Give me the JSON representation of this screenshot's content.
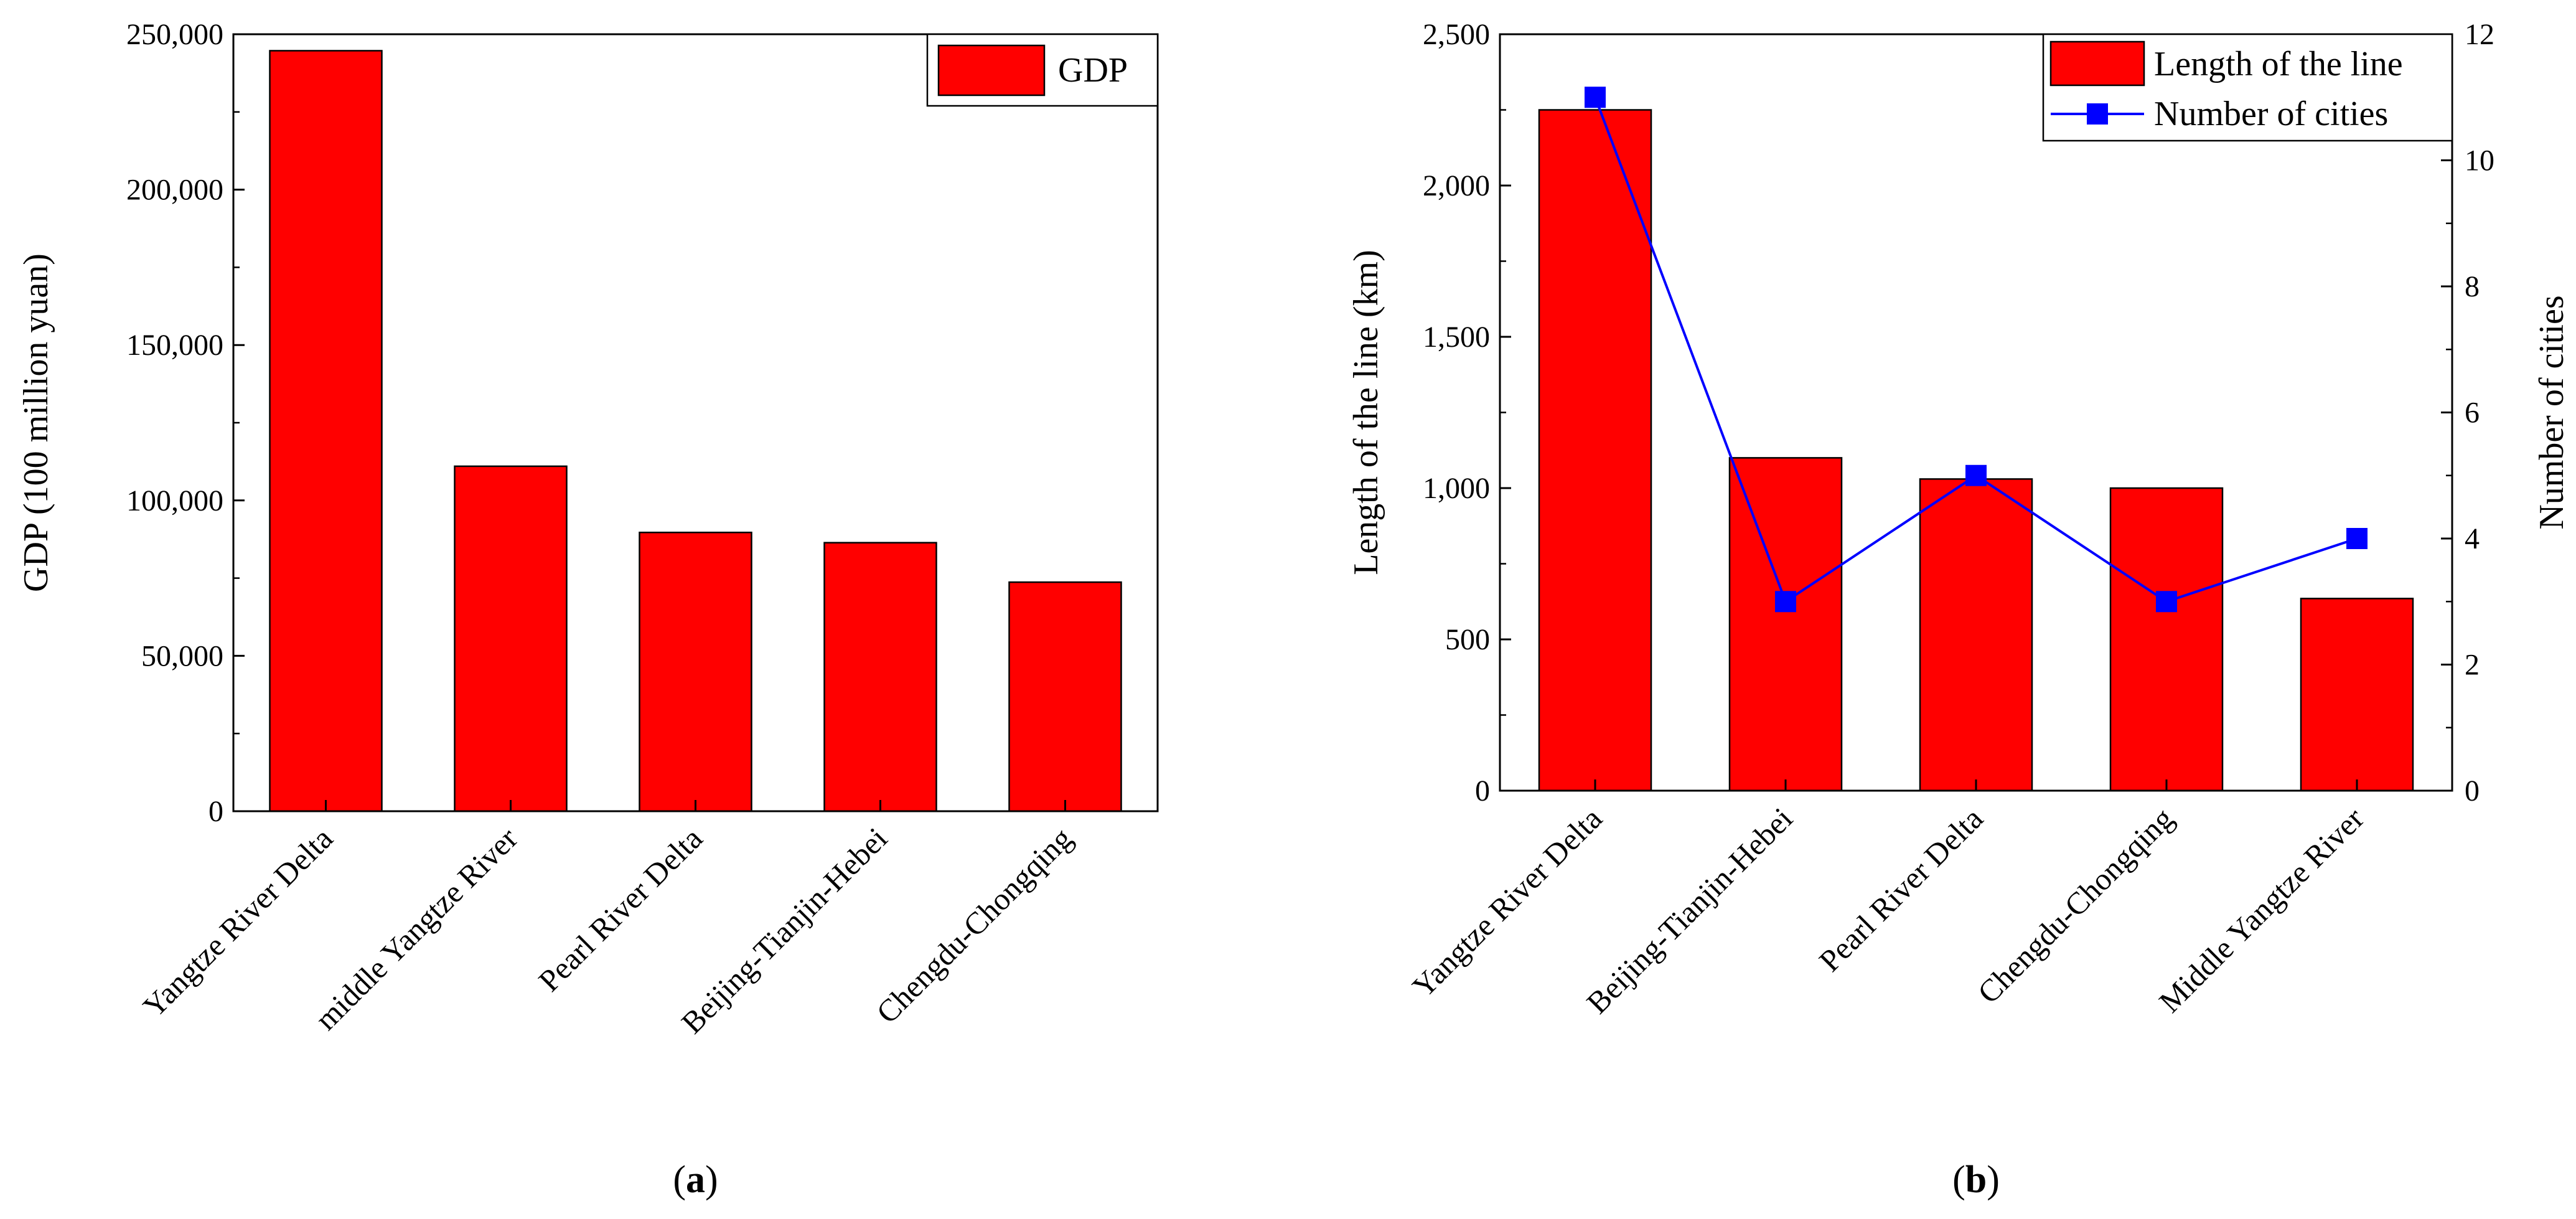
{
  "chart_data": [
    {
      "panel_label": "(a)",
      "type": "bar",
      "categories": [
        "Yangtze River Delta",
        "middle Yangtze River",
        "Pearl River Delta",
        "Beijing-Tianjin-Hebei",
        "Chengdu-Chongqing"
      ],
      "series": [
        {
          "name": "GDP",
          "values": [
            244700,
            111000,
            89700,
            86400,
            73700
          ]
        }
      ],
      "ylabel": "GDP (100 million yuan)",
      "ylim": [
        0,
        250000
      ],
      "yticks": [
        0,
        50000,
        100000,
        150000,
        200000,
        250000
      ],
      "ytick_labels": [
        "0",
        "50,000",
        "100,000",
        "150,000",
        "200,000",
        "250,000"
      ],
      "legend": [
        "GDP"
      ],
      "legend_position": "top-right",
      "colors": {
        "bar": "#ff0000"
      }
    },
    {
      "panel_label": "(b)",
      "type": "bar",
      "categories": [
        "Yangtze River Delta",
        "Beijing-Tianjin-Hebei",
        "Pearl River Delta",
        "Chengdu-Chongqing",
        "Middle Yangtze River"
      ],
      "series": [
        {
          "name": "Length of the line",
          "type": "bar",
          "axis": "left",
          "values": [
            2250,
            1100,
            1030,
            1000,
            635
          ]
        },
        {
          "name": "Number of cities",
          "type": "line",
          "axis": "right",
          "values": [
            11,
            3,
            5,
            3,
            4
          ]
        }
      ],
      "ylabel": "Length of the line (km)",
      "ylim": [
        0,
        2500
      ],
      "yticks": [
        0,
        500,
        1000,
        1500,
        2000,
        2500
      ],
      "ytick_labels": [
        "0",
        "500",
        "1,000",
        "1,500",
        "2,000",
        "2,500"
      ],
      "y2label": "Number of cities",
      "y2lim": [
        0,
        12
      ],
      "y2ticks": [
        0,
        2,
        4,
        6,
        8,
        10,
        12
      ],
      "y2tick_labels": [
        "0",
        "2",
        "4",
        "6",
        "8",
        "10",
        "12"
      ],
      "legend": [
        "Length of the line",
        "Number of cities"
      ],
      "legend_position": "top-right",
      "colors": {
        "bar": "#ff0000",
        "line": "#0000ff"
      }
    }
  ]
}
